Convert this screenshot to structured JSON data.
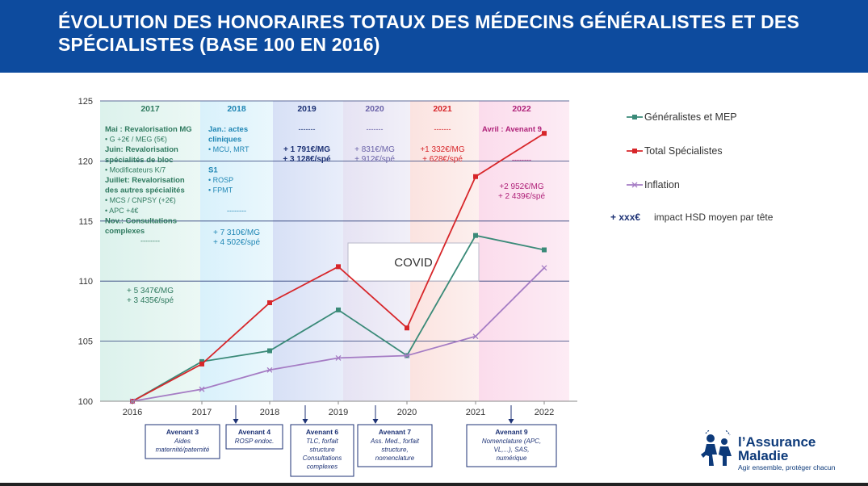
{
  "header": {
    "title": "ÉVOLUTION DES HONORAIRES TOTAUX DES MÉDECINS GÉNÉRALISTES ET DES SPÉCIALISTES (BASE 100 EN 2016)"
  },
  "colors": {
    "header_bg": "#0d4b9e",
    "generalistes": "#3a8a78",
    "specialistes": "#d7262a",
    "inflation": "#a57cc4",
    "navy": "#1d3275"
  },
  "chart_data": {
    "type": "line",
    "x": [
      "2016",
      "2017",
      "2018",
      "2019",
      "2020",
      "2021",
      "2022"
    ],
    "ylim": [
      100,
      125
    ],
    "yticks": [
      "100",
      "105",
      "110",
      "115",
      "120",
      "125"
    ],
    "grid": true,
    "legend_position": "right",
    "series": [
      {
        "name": "Généralistes et MEP",
        "color": "#3a8a78",
        "marker": "square",
        "values": [
          100,
          103.3,
          104.2,
          107.6,
          103.8,
          113.8,
          112.6
        ]
      },
      {
        "name": "Total Spécialistes",
        "color": "#d7262a",
        "marker": "square",
        "values": [
          100,
          103.1,
          108.2,
          111.2,
          106.1,
          118.7,
          122.3
        ]
      },
      {
        "name": "Inflation",
        "color": "#a57cc4",
        "marker": "cross",
        "values": [
          100,
          101.0,
          102.6,
          103.6,
          103.8,
          105.4,
          111.1
        ]
      }
    ],
    "legend_note": {
      "key": "+ xxx€",
      "text": "impact HSD moyen par tête"
    },
    "covid_label": "COVID",
    "phases": [
      {
        "year": "2017",
        "bg": "#dcf2ec",
        "title_color": "#2f7a5f",
        "text_color": "#2f7a5f",
        "lines": [
          {
            "t": "Mai : Revalorisation  MG",
            "b": true
          },
          {
            "t": "•    G +2€  / MEG  (5€)",
            "b": false
          },
          {
            "t": "Juin: Revalorisation",
            "b": true
          },
          {
            "t": "spécialités de bloc",
            "b": true
          },
          {
            "t": "•    Modificateurs K/7",
            "b": false
          },
          {
            "t": "Juillet: Revalorisation",
            "b": true
          },
          {
            "t": "des autres spécialités",
            "b": true
          },
          {
            "t": "•    MCS / CNPSY (+2€)",
            "b": false
          },
          {
            "t": "•    APC +4€",
            "b": false
          },
          {
            "t": "Nov.: Consultations",
            "b": true
          },
          {
            "t": "complexes",
            "b": true
          },
          {
            "t": "--------",
            "b": false
          }
        ],
        "impact": [
          "+ 5 347€/MG",
          "+ 3 435€/spé"
        ]
      },
      {
        "year": "2018",
        "bg": "#d9f1fb",
        "title_color": "#1f86b4",
        "text_color": "#1f86b4",
        "lines": [
          {
            "t": "Jan.: actes",
            "b": true
          },
          {
            "t": "cliniques",
            "b": true
          },
          {
            "t": "•    MCU, MRT",
            "b": false
          },
          {
            "t": "",
            "b": false
          },
          {
            "t": "S1",
            "b": true
          },
          {
            "t": "•    ROSP",
            "b": false
          },
          {
            "t": "•    FPMT",
            "b": false
          },
          {
            "t": "",
            "b": false
          },
          {
            "t": "--------",
            "b": false
          }
        ],
        "impact": [
          "+ 7 310€/MG",
          "+ 4 502€/spé"
        ]
      },
      {
        "year": "2019",
        "bg": "#d7e0f6",
        "title_color": "#1d3275",
        "text_color": "#1d3275",
        "lines": [
          {
            "t": "-------",
            "b": false
          }
        ],
        "impact": [
          "+ 1 791€/MG",
          "+ 3 128€/spé"
        ]
      },
      {
        "year": "2020",
        "bg": "#e6e3f3",
        "title_color": "#6a62a8",
        "text_color": "#6a62a8",
        "lines": [
          {
            "t": "-------",
            "b": false
          }
        ],
        "impact": [
          "+ 831€/MG",
          "+ 912€/spé"
        ]
      },
      {
        "year": "2021",
        "bg": "#fbe3e0",
        "title_color": "#d7262a",
        "text_color": "#d7262a",
        "lines": [
          {
            "t": "-------",
            "b": false
          }
        ],
        "impact": [
          "+1 332€/MG",
          "+ 628€/spé"
        ]
      },
      {
        "year": "2022",
        "bg": "#fbdcec",
        "title_color": "#b0237a",
        "text_color": "#b0237a",
        "lines": [
          {
            "t": "Avril :  Avenant  9",
            "b": true
          },
          {
            "t": "",
            "b": false
          },
          {
            "t": "",
            "b": false
          },
          {
            "t": "--------",
            "b": false
          }
        ],
        "impact": [
          "+2 952€/MG",
          "+ 2 439€/spé"
        ]
      }
    ],
    "annotations": [
      {
        "title": "Avenant 3",
        "lines": [
          "Aides",
          "maternité/paternité"
        ]
      },
      {
        "title": "Avenant 4",
        "lines": [
          "ROSP endoc."
        ]
      },
      {
        "title": "Avenant 6",
        "lines": [
          "TLC, forfait",
          "structure",
          "Consultations",
          "complexes"
        ]
      },
      {
        "title": "Avenant 7",
        "lines": [
          "Ass. Med., forfait",
          "structure,",
          "nomenclature"
        ]
      },
      {
        "title": "Avenant 9",
        "lines": [
          "Nomenclature (APC,",
          "VL,...), SAS,",
          "numérique"
        ]
      }
    ]
  },
  "logo": {
    "name_line1": "l’Assurance",
    "name_line2": "Maladie",
    "tagline": "Agir ensemble, protéger chacun",
    "icon": "family-figures-icon"
  }
}
